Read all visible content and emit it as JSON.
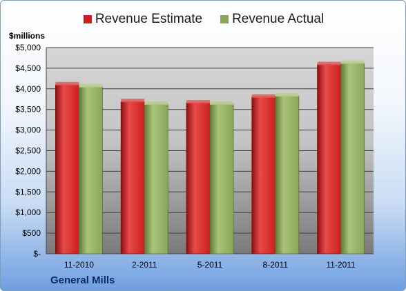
{
  "chart_data": {
    "type": "bar",
    "ylabel": "$millions",
    "categories": [
      "11-2010",
      "2-2011",
      "5-2011",
      "8-2011",
      "11-2011"
    ],
    "series": [
      {
        "name": "Revenue Estimate",
        "color": "#cc1f1f",
        "values": [
          4100,
          3690,
          3660,
          3800,
          4590
        ]
      },
      {
        "name": "Revenue Actual",
        "color": "#8aa65a",
        "values": [
          4050,
          3630,
          3630,
          3830,
          4620
        ]
      }
    ],
    "ylim": [
      0,
      5000
    ],
    "yticks": [
      0,
      500,
      1000,
      1500,
      2000,
      2500,
      3000,
      3500,
      4000,
      4500,
      5000
    ],
    "ytick_labels": [
      "$-",
      "$500",
      "$1,000",
      "$1,500",
      "$2,000",
      "$2,500",
      "$3,000",
      "$3,500",
      "$4,000",
      "$4,500",
      "$5,000"
    ],
    "grid": true,
    "legend": "top"
  },
  "footer": {
    "company": "General Mills"
  }
}
